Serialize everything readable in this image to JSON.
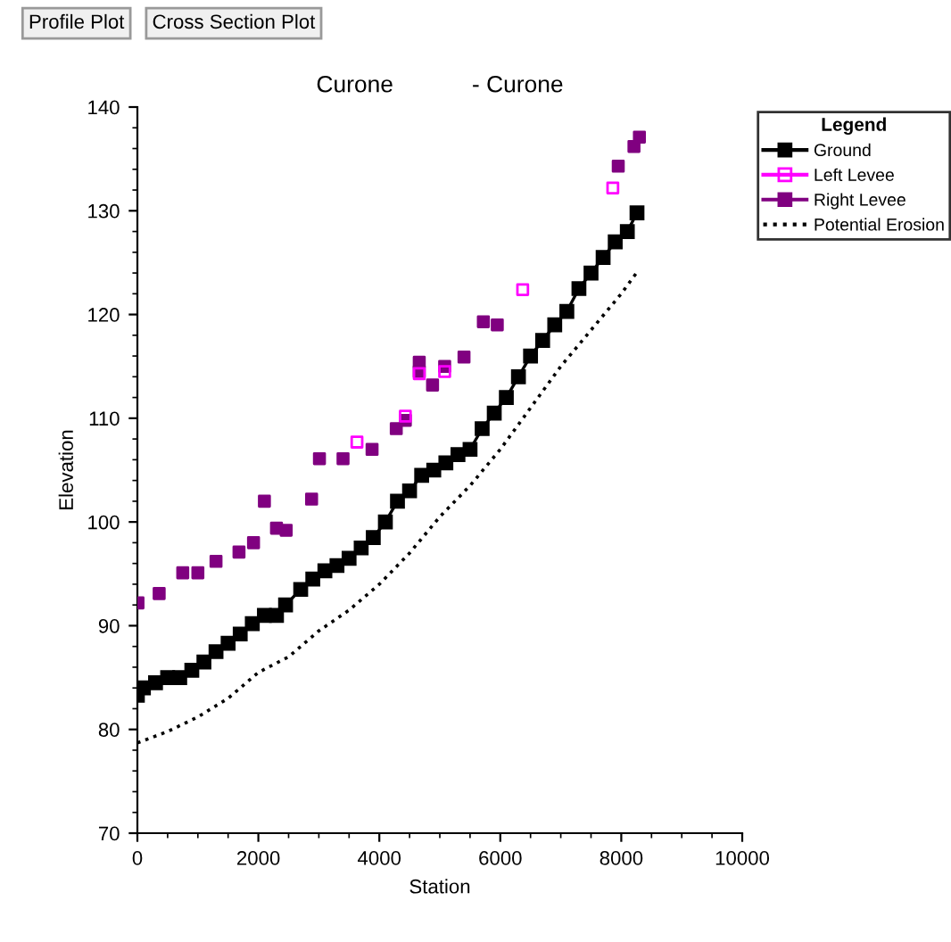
{
  "chart_data": {
    "type": "line",
    "title": "Curone            - Curone",
    "xlabel": "Station",
    "ylabel": "Elevation",
    "legend_title": "Legend",
    "annotations": [
      "Profile Plot",
      "Cross Section Plot"
    ],
    "xlim": [
      0,
      10000
    ],
    "xticks": [
      0,
      2000,
      4000,
      6000,
      8000,
      10000
    ],
    "ylim": [
      70,
      140
    ],
    "yticks": [
      70,
      80,
      90,
      100,
      110,
      120,
      130,
      140
    ],
    "grid": false,
    "legend": "top right",
    "series": [
      {
        "name": "Ground",
        "color": "#000000",
        "marker": "square",
        "line_style": "solid",
        "x": [
          0,
          100,
          300,
          500,
          700,
          900,
          1100,
          1300,
          1500,
          1700,
          1900,
          2100,
          2300,
          2450,
          2700,
          2900,
          3100,
          3300,
          3500,
          3700,
          3900,
          4100,
          4300,
          4500,
          4700,
          4900,
          5100,
          5300,
          5500,
          5700,
          5900,
          6100,
          6300,
          6500,
          6700,
          6900,
          7100,
          7300,
          7500,
          7700,
          7900,
          8100,
          8260
        ],
        "values": [
          83.3,
          84,
          84.5,
          85,
          85,
          85.7,
          86.5,
          87.5,
          88.3,
          89.2,
          90.2,
          91,
          91,
          92,
          93.5,
          94.5,
          95.3,
          95.8,
          96.5,
          97.5,
          98.5,
          100,
          102,
          103,
          104.5,
          105,
          105.7,
          106.5,
          107,
          109,
          110.5,
          112,
          114,
          116,
          117.5,
          119,
          120.3,
          122.5,
          124,
          125.5,
          127,
          128,
          129.8
        ]
      },
      {
        "name": "Left Levee",
        "type": "scatter",
        "color": "#ff00ff",
        "marker": "square",
        "x": [
          3630,
          4430,
          4660,
          5080,
          6370,
          7860
        ],
        "values": [
          107.7,
          110.2,
          114.3,
          114.5,
          122.4,
          132.2
        ]
      },
      {
        "name": "Right Levee",
        "type": "scatter",
        "color": "#800080",
        "marker": "square",
        "x": [
          10,
          360,
          750,
          1000,
          1300,
          1680,
          1920,
          2100,
          2300,
          2460,
          2880,
          3010,
          3400,
          3880,
          4280,
          4430,
          4660,
          4660,
          4880,
          5080,
          5400,
          5720,
          5950,
          7950,
          8210,
          8300
        ],
        "values": [
          92.2,
          93.1,
          95.1,
          95.1,
          96.2,
          97.1,
          98,
          102,
          99.4,
          99.2,
          102.2,
          106.1,
          106.1,
          107,
          109,
          109.8,
          115.4,
          114.5,
          113.2,
          115,
          115.9,
          119.3,
          119,
          134.3,
          136.2,
          137.1
        ]
      },
      {
        "name": "Potential Erosion",
        "color": "#000000",
        "marker": "none",
        "line_style": "dotted",
        "x": [
          0,
          500,
          1000,
          1500,
          2000,
          2500,
          3000,
          3500,
          4000,
          4500,
          5000,
          5500,
          6000,
          6500,
          7000,
          7500,
          8000,
          8250
        ],
        "values": [
          78.7,
          79.8,
          81.2,
          83,
          85.5,
          87,
          89.5,
          91.5,
          94,
          97,
          100.5,
          103.5,
          107,
          111,
          115,
          118.5,
          122,
          124
        ]
      }
    ]
  }
}
